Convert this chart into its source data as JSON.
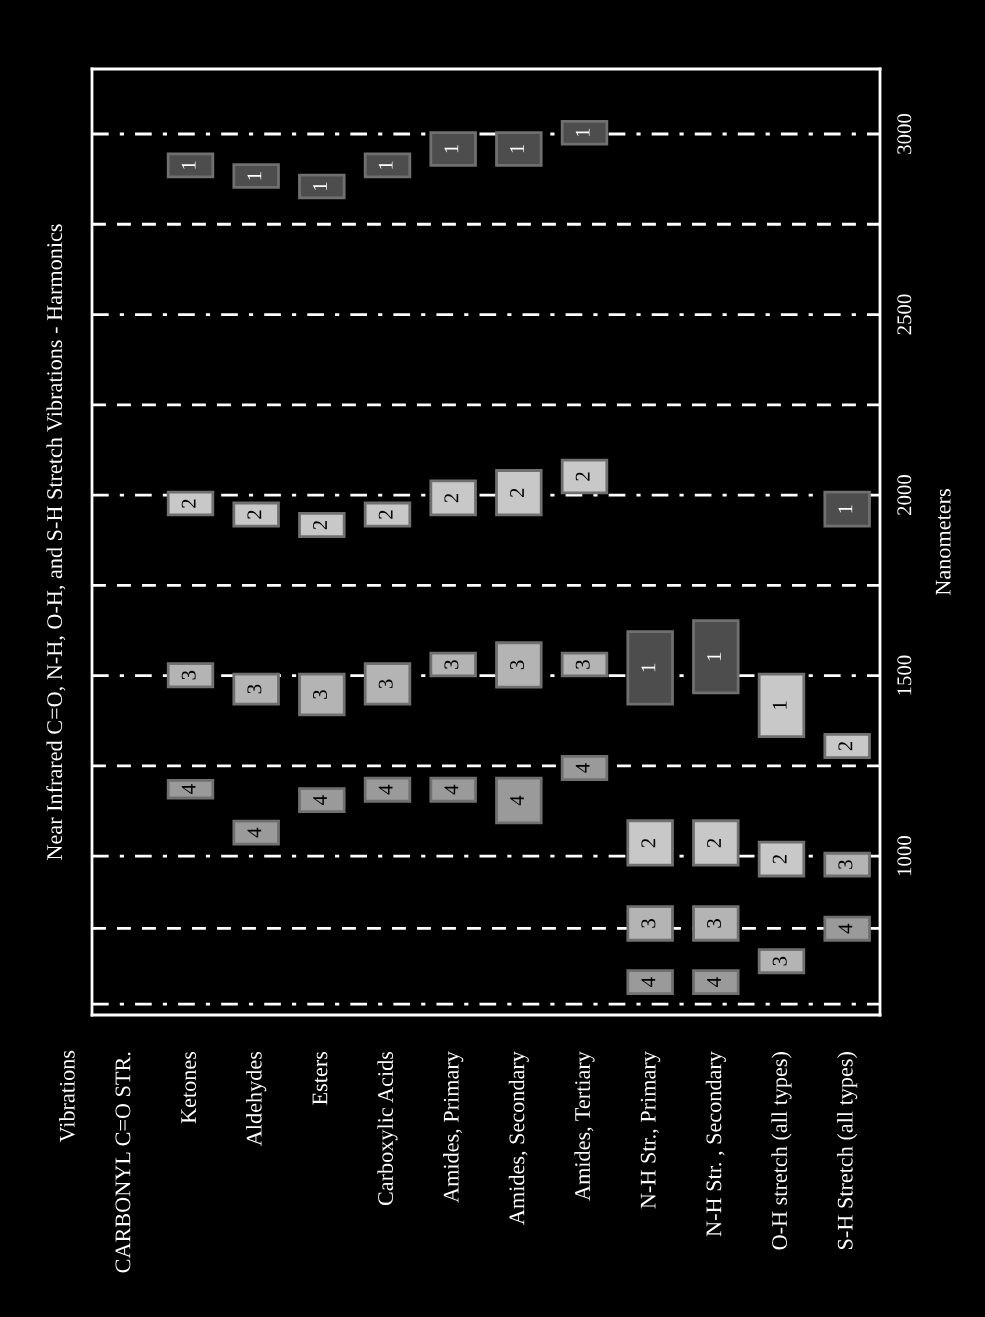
{
  "chart_data": {
    "type": "bar",
    "title": "Near Infrared C=O, N-H, O-H, and S-H Stretch Vibrations - Harmonics",
    "annotations": [
      "Vibrations"
    ],
    "ylabel": "Nanometers",
    "categories": [
      "CARBONYL C=O STR.",
      "Ketones",
      "Aldehydes",
      "Esters",
      "Carboxylic Acids",
      "Amides, Primary",
      "Amides, Secondary",
      "Amides, Tertiary",
      "N-H Str., Primary",
      "N-H Str. , Secondary",
      "O-H stretch (all types)",
      "S-H Stretch (all types)"
    ],
    "series": [
      {
        "name": "1",
        "color": "#4d4d4d",
        "base": [
          null,
          2881,
          2852,
          2823,
          2881,
          2913,
          2913,
          2972,
          1421,
          1452,
          1331,
          1914
        ],
        "values": [
          null,
          64,
          63,
          63,
          64,
          91,
          91,
          63,
          201,
          200,
          173,
          94
        ],
        "colors": [
          null,
          null,
          null,
          null,
          null,
          null,
          null,
          null,
          null,
          null,
          "#c8c8c8",
          null
        ]
      },
      {
        "name": "2",
        "color": "#c8c8c8",
        "base": [
          null,
          1945,
          1914,
          1885,
          1914,
          1945,
          1945,
          2006,
          975,
          975,
          945,
          1273
        ],
        "values": [
          null,
          63,
          64,
          64,
          64,
          94,
          123,
          91,
          123,
          123,
          94,
          64
        ]
      },
      {
        "name": "3",
        "color": "#b4b4b4",
        "base": [
          null,
          1469,
          1421,
          1391,
          1421,
          1499,
          1468,
          1499,
          767,
          767,
          677,
          945
        ],
        "values": [
          null,
          64,
          83,
          113,
          112,
          63,
          123,
          63,
          93,
          93,
          64,
          63
        ]
      },
      {
        "name": "4",
        "color": "#9a9a9a",
        "base": [
          null,
          1161,
          1033,
          1123,
          1152,
          1152,
          1092,
          1212,
          619,
          619,
          null,
          767
        ],
        "values": [
          null,
          49,
          64,
          64,
          64,
          64,
          124,
          64,
          64,
          64,
          null,
          64
        ]
      }
    ],
    "ylim": [
      560,
      3180
    ],
    "yticks": [
      1000,
      1500,
      2000,
      2500,
      3000
    ],
    "grid": false,
    "legend": false,
    "ref_lines": [
      {
        "axis": "y",
        "value": 3000,
        "line_style": "dashdot",
        "color": "#ffffff"
      },
      {
        "axis": "y",
        "value": 2750,
        "line_style": "dashed",
        "color": "#ffffff"
      },
      {
        "axis": "y",
        "value": 2500,
        "line_style": "dashdot",
        "color": "#ffffff"
      },
      {
        "axis": "y",
        "value": 2250,
        "line_style": "dashed",
        "color": "#ffffff"
      },
      {
        "axis": "y",
        "value": 2000,
        "line_style": "dashdot",
        "color": "#ffffff"
      },
      {
        "axis": "y",
        "value": 1750,
        "line_style": "dashed",
        "color": "#ffffff"
      },
      {
        "axis": "y",
        "value": 1500,
        "line_style": "dashdot",
        "color": "#ffffff"
      },
      {
        "axis": "y",
        "value": 1250,
        "line_style": "dashed",
        "color": "#ffffff"
      },
      {
        "axis": "y",
        "value": 1000,
        "line_style": "dashdot",
        "color": "#ffffff"
      },
      {
        "axis": "y",
        "value": 800,
        "line_style": "dashed",
        "color": "#ffffff"
      },
      {
        "axis": "y",
        "value": 590,
        "line_style": "dashdot",
        "color": "#ffffff"
      }
    ]
  }
}
